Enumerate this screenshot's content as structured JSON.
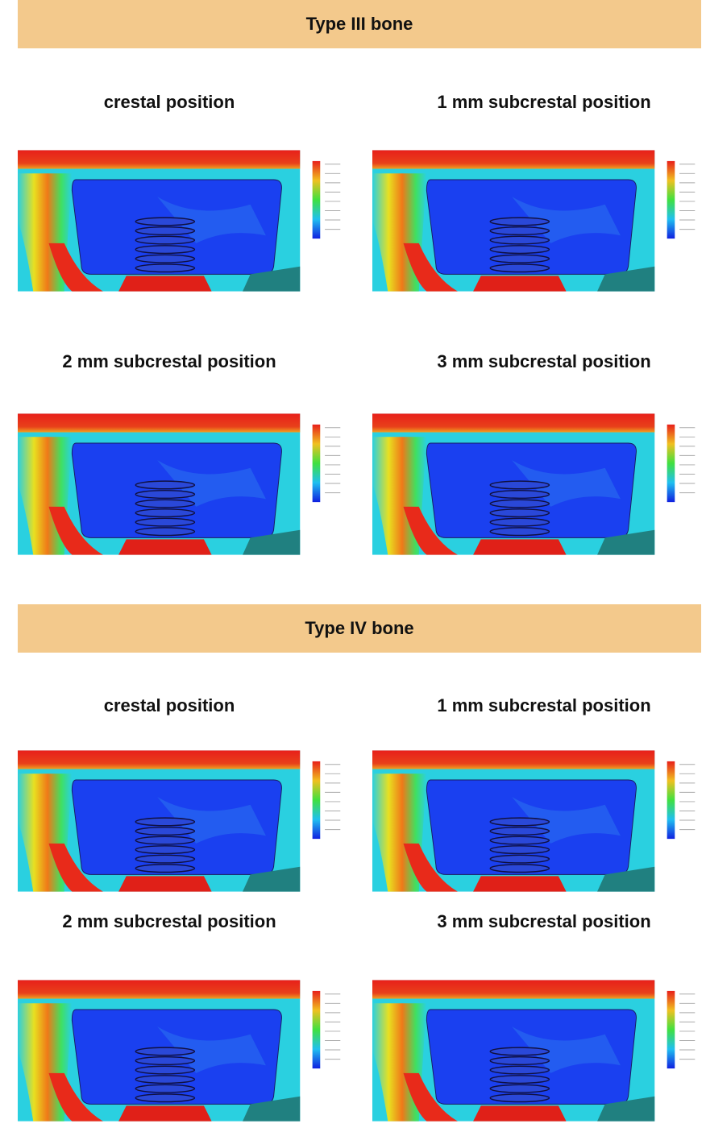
{
  "sections": [
    {
      "title": "Type III bone",
      "panels": [
        {
          "label": "crestal position"
        },
        {
          "label": "1 mm subcrestal position"
        },
        {
          "label": "2 mm subcrestal position"
        },
        {
          "label": "3 mm subcrestal position"
        }
      ]
    },
    {
      "title": "Type IV bone",
      "panels": [
        {
          "label": "crestal position"
        },
        {
          "label": "1 mm subcrestal position"
        },
        {
          "label": "2 mm subcrestal position"
        },
        {
          "label": "3 mm subcrestal position"
        }
      ]
    }
  ]
}
